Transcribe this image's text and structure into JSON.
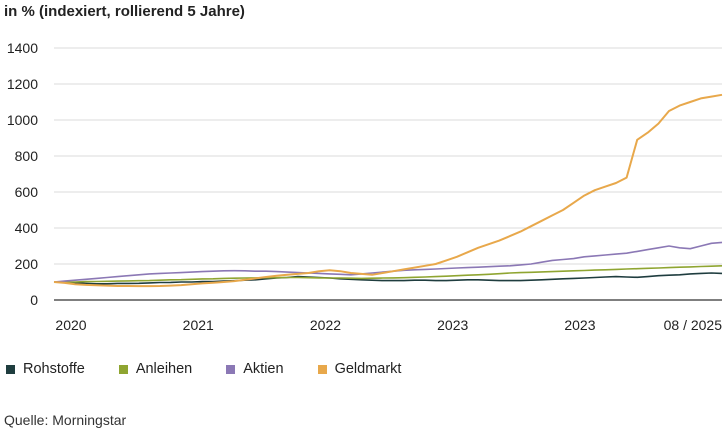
{
  "title": "in % (indexiert, rollierend 5 Jahre)",
  "source": "Quelle: Morningstar",
  "chart_data": {
    "type": "line",
    "ylim": [
      0,
      1400
    ],
    "yticks": [
      0,
      200,
      400,
      600,
      800,
      1000,
      1200,
      1400
    ],
    "grid": true,
    "legend_position": "bottom-left",
    "xticks": [
      {
        "label": "2020",
        "t": 0
      },
      {
        "label": "2021",
        "t": 12
      },
      {
        "label": "2022",
        "t": 24
      },
      {
        "label": "2023",
        "t": 36
      },
      {
        "label": "2023",
        "t": 48
      },
      {
        "label": "08 / 2025",
        "t": 60
      }
    ],
    "x_count": 64,
    "series": [
      {
        "name": "Rohstoffe",
        "color": "#1f3d3f",
        "values": [
          100,
          100,
          95,
          92,
          90,
          90,
          92,
          92,
          93,
          95,
          97,
          98,
          100,
          100,
          102,
          103,
          105,
          107,
          110,
          112,
          118,
          122,
          125,
          130,
          128,
          125,
          122,
          118,
          115,
          112,
          110,
          108,
          108,
          108,
          110,
          110,
          108,
          108,
          110,
          112,
          112,
          110,
          108,
          108,
          108,
          110,
          112,
          115,
          118,
          120,
          122,
          125,
          128,
          130,
          128,
          126,
          130,
          135,
          138,
          140,
          145,
          148,
          150,
          148
        ]
      },
      {
        "name": "Anleihen",
        "color": "#8fa531",
        "values": [
          100,
          100,
          100,
          102,
          103,
          104,
          105,
          106,
          107,
          108,
          110,
          112,
          113,
          115,
          117,
          118,
          120,
          121,
          122,
          123,
          124,
          124,
          125,
          125,
          124,
          123,
          122,
          122,
          121,
          120,
          121,
          122,
          123,
          124,
          126,
          128,
          130,
          132,
          135,
          138,
          140,
          143,
          146,
          150,
          152,
          154,
          156,
          158,
          160,
          162,
          164,
          166,
          168,
          170,
          172,
          174,
          176,
          178,
          180,
          182,
          184,
          186,
          188,
          190
        ]
      },
      {
        "name": "Aktien",
        "color": "#8b78b5",
        "values": [
          100,
          105,
          110,
          115,
          120,
          125,
          130,
          135,
          140,
          145,
          148,
          150,
          152,
          155,
          158,
          160,
          162,
          163,
          162,
          160,
          160,
          158,
          155,
          152,
          150,
          148,
          145,
          143,
          140,
          145,
          150,
          155,
          160,
          165,
          168,
          170,
          172,
          175,
          178,
          180,
          182,
          185,
          188,
          190,
          195,
          200,
          210,
          220,
          225,
          230,
          240,
          245,
          250,
          255,
          260,
          270,
          280,
          290,
          300,
          290,
          285,
          300,
          315,
          320
        ]
      },
      {
        "name": "Geldmarkt",
        "color": "#e8a84b",
        "values": [
          100,
          95,
          88,
          84,
          82,
          80,
          78,
          78,
          77,
          77,
          78,
          80,
          83,
          88,
          92,
          96,
          100,
          105,
          112,
          120,
          128,
          135,
          140,
          145,
          150,
          160,
          165,
          160,
          150,
          145,
          140,
          150,
          160,
          170,
          180,
          190,
          200,
          220,
          240,
          265,
          290,
          310,
          330,
          355,
          380,
          410,
          440,
          470,
          500,
          540,
          580,
          610,
          630,
          650,
          680,
          890,
          930,
          980,
          1050,
          1080,
          1100,
          1120,
          1130,
          1140
        ]
      }
    ]
  }
}
